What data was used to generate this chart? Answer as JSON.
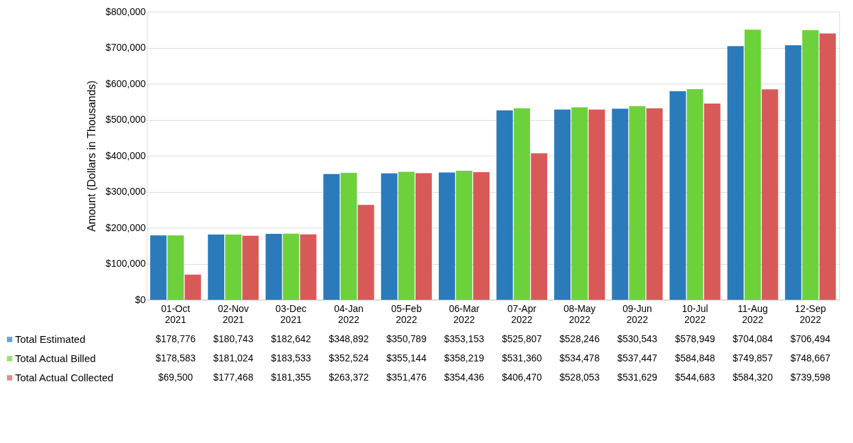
{
  "chart_data": {
    "type": "bar",
    "ylabel": "Amount (Dollars in Thousands)",
    "categories": [
      "01-Oct 2021",
      "02-Nov 2021",
      "03-Dec 2021",
      "04-Jan 2022",
      "05-Feb 2022",
      "06-Mar 2022",
      "07-Apr 2022",
      "08-May 2022",
      "09-Jun 2022",
      "10-Jul 2022",
      "11-Aug 2022",
      "12-Sep 2022"
    ],
    "series": [
      {
        "name": "Total Estimated",
        "color": "#2b7bba",
        "values": [
          178776,
          180743,
          182642,
          348892,
          350789,
          353153,
          525807,
          528246,
          530543,
          578949,
          704084,
          706494
        ],
        "value_labels": [
          "$178,776",
          "$180,743",
          "$182,642",
          "$348,892",
          "$350,789",
          "$353,153",
          "$525,807",
          "$528,246",
          "$530,543",
          "$578,949",
          "$704,084",
          "$706,494"
        ]
      },
      {
        "name": "Total Actual Billed",
        "color": "#6dd13b",
        "values": [
          178583,
          181024,
          183533,
          352524,
          355144,
          358219,
          531360,
          534478,
          537447,
          584848,
          749857,
          748667
        ],
        "value_labels": [
          "$178,583",
          "$181,024",
          "$183,533",
          "$352,524",
          "$355,144",
          "$358,219",
          "$531,360",
          "$534,478",
          "$537,447",
          "$584,848",
          "$749,857",
          "$748,667"
        ]
      },
      {
        "name": "Total Actual Collected",
        "color": "#d85a58",
        "values": [
          69500,
          177468,
          181355,
          263372,
          351476,
          354436,
          406470,
          528053,
          531629,
          544683,
          584320,
          739598
        ],
        "value_labels": [
          "$69,500",
          "$177,468",
          "$181,355",
          "$263,372",
          "$351,476",
          "$354,436",
          "$406,470",
          "$528,053",
          "$531,629",
          "$544,683",
          "$584,320",
          "$739,598"
        ]
      }
    ],
    "ylim": [
      0,
      800000
    ],
    "yticks": [
      {
        "value": 0,
        "label": "$0"
      },
      {
        "value": 100000,
        "label": "$100,000"
      },
      {
        "value": 200000,
        "label": "$200,000"
      },
      {
        "value": 300000,
        "label": "$300,000"
      },
      {
        "value": 400000,
        "label": "$400,000"
      },
      {
        "value": 500000,
        "label": "$500,000"
      },
      {
        "value": 600000,
        "label": "$600,000"
      },
      {
        "value": 700000,
        "label": "$700,000"
      },
      {
        "value": 800000,
        "label": "$800,000"
      }
    ],
    "grid": "y",
    "legend": "bottom left"
  }
}
